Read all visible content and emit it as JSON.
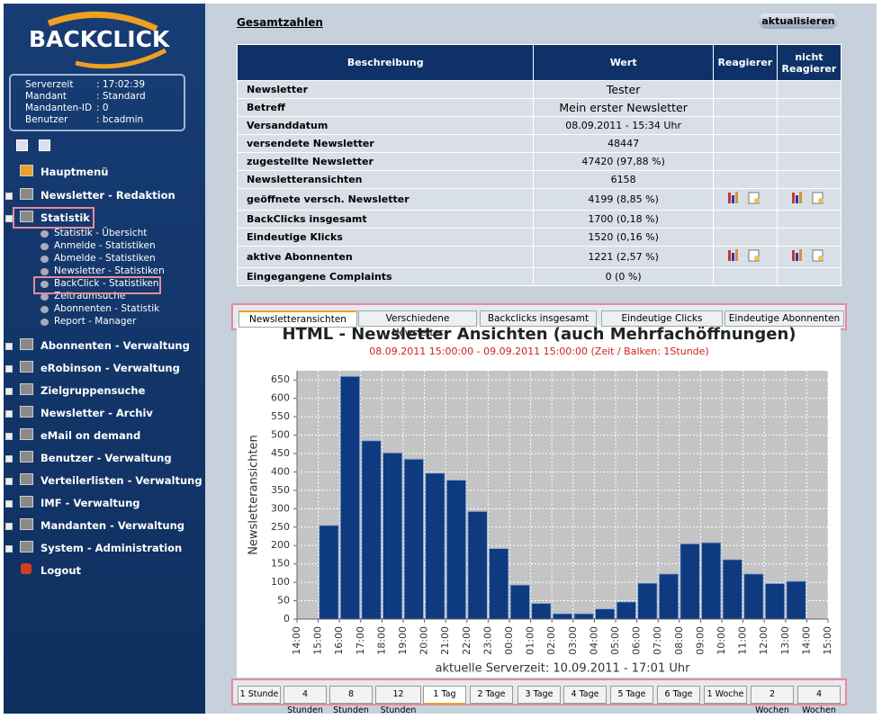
{
  "sidebar": {
    "logo": "BACKCLICK",
    "info": [
      {
        "label": "Serverzeit",
        "value": ": 17:02:39"
      },
      {
        "label": "Mandant",
        "value": ": Standard"
      },
      {
        "label": "Mandanten-ID",
        "value": ": 0"
      },
      {
        "label": "Benutzer",
        "value": ": bcadmin"
      }
    ],
    "menu": [
      "Hauptmenü",
      "Newsletter - Redaktion",
      "Statistik"
    ],
    "submenu": [
      "Statistik - Übersicht",
      "Anmelde - Statistiken",
      "Abmelde - Statistiken",
      "Newsletter - Statistiken",
      "BackClick - Statistiken",
      "Zeitraumsuche",
      "Abonnenten - Statistik",
      "Report - Manager"
    ],
    "menu2": [
      "Abonnenten - Verwaltung",
      "eRobinson - Verwaltung",
      "Zielgruppensuche",
      "Newsletter - Archiv",
      "eMail on demand",
      "Benutzer - Verwaltung",
      "Verteilerlisten - Verwaltung",
      "IMF - Verwaltung",
      "Mandanten - Verwaltung",
      "System - Administration"
    ],
    "logout": "Logout"
  },
  "main": {
    "heading": "Gesamtzahlen",
    "refresh": "aktualisieren",
    "table": {
      "header": [
        "Beschreibung",
        "Wert",
        "Reagierer",
        "nicht Reagierer"
      ],
      "rows": [
        [
          "Newsletter",
          "Tester"
        ],
        [
          "Betreff",
          "Mein erster Newsletter"
        ],
        [
          "Versanddatum",
          "08.09.2011 - 15:34 Uhr"
        ],
        [
          "versendete Newsletter",
          "48447"
        ],
        [
          "zugestellte Newsletter",
          "47420 (97,88 %)"
        ],
        [
          "Newsletteransichten",
          "6158"
        ],
        [
          "geöffnete versch. Newsletter",
          "4199 (8,85 %)"
        ],
        [
          "BackClicks insgesamt",
          "1700 (0,18 %)"
        ],
        [
          "Eindeutige Klicks",
          "1520 (0,16 %)"
        ],
        [
          "aktive Abonnenten",
          "1221 (2,57 %)"
        ],
        [
          "Eingegangene Complaints",
          "0 (0 %)"
        ]
      ]
    },
    "tabs": [
      "Newsletteransichten",
      "Verschiedene Newsletter",
      "Backclicks insgesamt",
      "Eindeutige Clicks",
      "Eindeutige Abonnenten"
    ],
    "buttons": [
      "1 Stunde",
      "4 Stunden",
      "8 Stunden",
      "12 Stunden",
      "1 Tag",
      "2 Tage",
      "3 Tage",
      "4 Tage",
      "5 Tage",
      "6 Tage",
      "1 Woche",
      "2 Wochen",
      "4 Wochen"
    ]
  },
  "chart_data": {
    "type": "bar",
    "title": "HTML - Newsletter Ansichten (auch Mehrfachöffnungen)",
    "subtitle": "08.09.2011 15:00:00 - 09.09.2011 15:00:00  (Zeit / Balken: 1Stunde)",
    "ylabel": "Newsletteransichten",
    "xlabel": "aktuelle Serverzeit: 10.09.2011 - 17:01 Uhr",
    "categories": [
      "14:00",
      "15:00",
      "16:00",
      "17:00",
      "18:00",
      "19:00",
      "20:00",
      "21:00",
      "22:00",
      "23:00",
      "00:00",
      "01:00",
      "02:00",
      "03:00",
      "04:00",
      "05:00",
      "06:00",
      "07:00",
      "08:00",
      "09:00",
      "10:00",
      "11:00",
      "12:00",
      "13:00",
      "14:00",
      "15:00"
    ],
    "values": [
      null,
      255,
      660,
      485,
      452,
      435,
      397,
      378,
      293,
      192,
      93,
      43,
      15,
      15,
      28,
      47,
      98,
      123,
      205,
      208,
      162,
      123,
      97,
      103,
      null,
      null
    ],
    "color": "#0e3a80",
    "ylim": [
      0,
      675
    ],
    "yticks": [
      0,
      50,
      100,
      150,
      200,
      250,
      300,
      350,
      400,
      450,
      500,
      550,
      600,
      650
    ],
    "grid": true
  }
}
